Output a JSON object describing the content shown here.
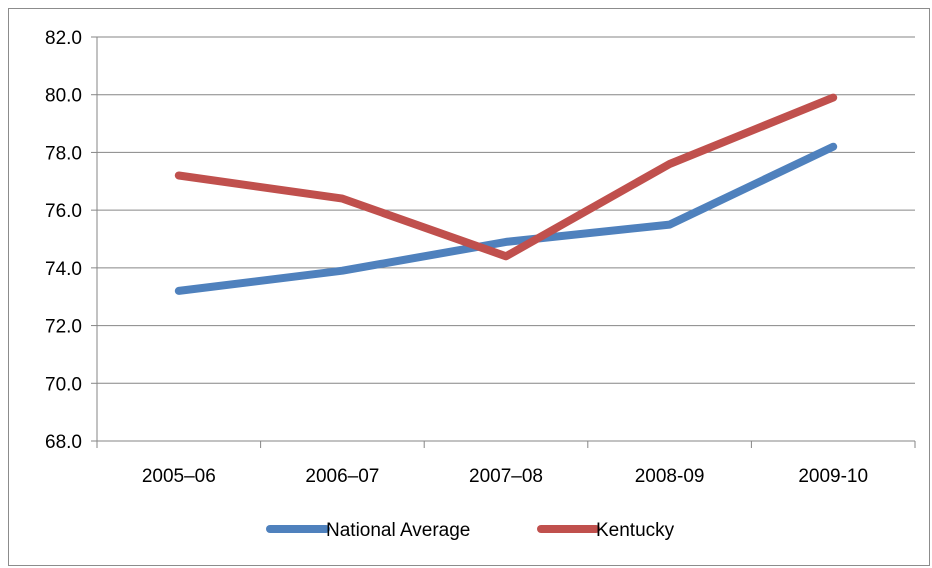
{
  "chart_data": {
    "type": "line",
    "title": "",
    "xlabel": "",
    "ylabel": "",
    "categories": [
      "2005–06",
      "2006–07",
      "2007–08",
      "2008-09",
      "2009-10"
    ],
    "ylim": [
      68.0,
      82.0
    ],
    "yticks": [
      "68.0",
      "70.0",
      "72.0",
      "74.0",
      "76.0",
      "78.0",
      "80.0",
      "82.0"
    ],
    "grid": "horizontal",
    "legend_position": "bottom",
    "series": [
      {
        "name": "National Average",
        "color": "#4F81BD",
        "values": [
          73.2,
          73.9,
          74.9,
          75.5,
          78.2
        ]
      },
      {
        "name": "Kentucky",
        "color": "#C0504D",
        "values": [
          77.2,
          76.4,
          74.4,
          77.6,
          79.9
        ]
      }
    ]
  }
}
